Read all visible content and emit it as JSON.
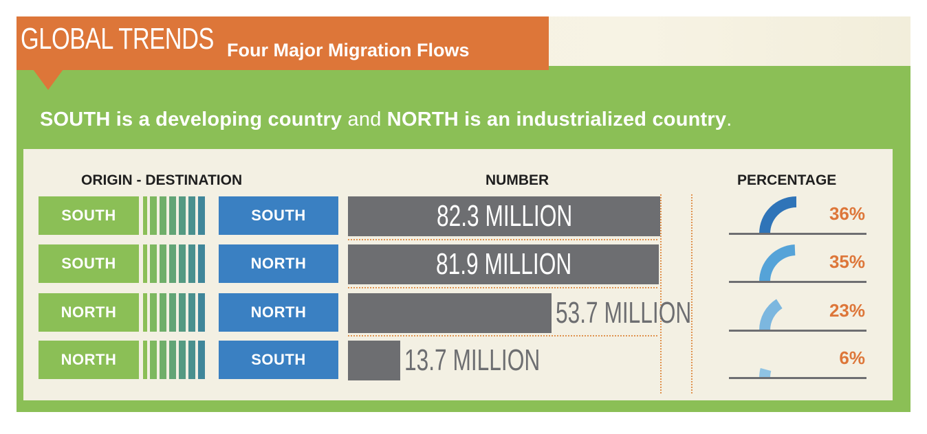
{
  "header": {
    "title": "GLOBAL TRENDS",
    "subtitle": "Four Major Migration Flows"
  },
  "tagline": {
    "part1": "SOUTH is a developing country",
    "part2": "and",
    "part3": "NORTH is an industrialized country",
    "part4": "."
  },
  "columns": {
    "flow": "ORIGIN - DESTINATION",
    "number": "NUMBER",
    "percentage": "PERCENTAGE"
  },
  "colors": {
    "green": "#8bbf56",
    "blue": "#3a80c2",
    "orange": "#dd7639",
    "bar_gray": "#6d6e71"
  },
  "chart_data": {
    "type": "bar",
    "categories": [
      "SOUTH - SOUTH",
      "SOUTH - NORTH",
      "NORTH - NORTH",
      "NORTH - SOUTH"
    ],
    "rows": [
      {
        "origin": "SOUTH",
        "destination": "SOUTH",
        "value": 82.3,
        "label": "82.3 MILLION",
        "percent": 36,
        "percent_label": "36%"
      },
      {
        "origin": "SOUTH",
        "destination": "NORTH",
        "value": 81.9,
        "label": "81.9 MILLION",
        "percent": 35,
        "percent_label": "35%"
      },
      {
        "origin": "NORTH",
        "destination": "NORTH",
        "value": 53.7,
        "label": "53.7 MILLION",
        "percent": 23,
        "percent_label": "23%"
      },
      {
        "origin": "NORTH",
        "destination": "SOUTH",
        "value": 13.7,
        "label": "13.7 MILLION",
        "percent": 6,
        "percent_label": "6%"
      }
    ],
    "values": [
      82.3,
      81.9,
      53.7,
      13.7
    ],
    "unit": "MILLION",
    "gauge_colors": [
      "#2f74b8",
      "#55a3d8",
      "#7cb7df",
      "#8fc3e3"
    ]
  }
}
